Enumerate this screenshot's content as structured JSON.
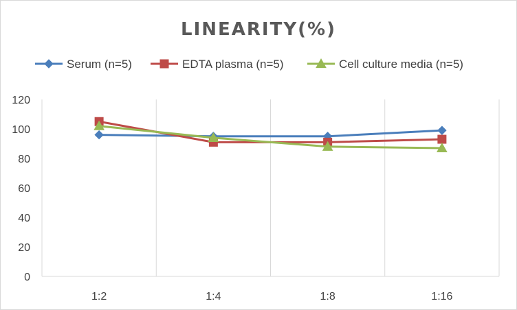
{
  "chart_data": {
    "type": "line",
    "title": "LINEARITY(%)",
    "xlabel": "",
    "ylabel": "",
    "categories": [
      "1:2",
      "1:4",
      "1:8",
      "1:16"
    ],
    "ylim": [
      0,
      120
    ],
    "yticks": [
      0,
      20,
      40,
      60,
      80,
      100,
      120
    ],
    "grid": "vertical",
    "legend_position": "top",
    "series": [
      {
        "name": "Serum (n=5)",
        "values": [
          96,
          95,
          95,
          99
        ],
        "color": "#4a7ebb",
        "marker": "diamond"
      },
      {
        "name": "EDTA plasma (n=5)",
        "values": [
          105,
          91,
          91,
          93
        ],
        "color": "#be4b48",
        "marker": "square"
      },
      {
        "name": "Cell culture media (n=5)",
        "values": [
          102,
          94,
          88,
          87
        ],
        "color": "#98b954",
        "marker": "triangle"
      }
    ]
  }
}
